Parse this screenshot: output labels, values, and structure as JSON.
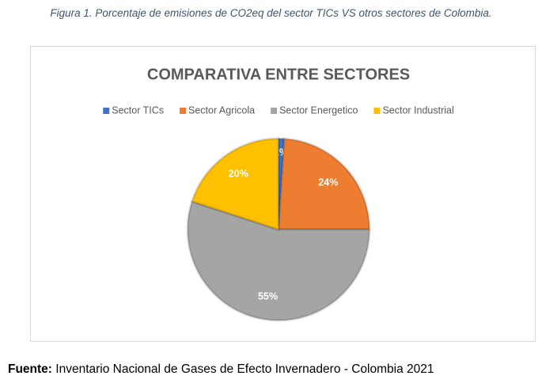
{
  "caption": "Figura 1. Porcentaje de emisiones de CO2eq del sector TICs VS otros sectores de Colombia.",
  "chart_data": {
    "type": "pie",
    "title": "COMPARATIVA ENTRE SECTORES",
    "categories": [
      "Sector TICs",
      "Sector Agricola",
      "Sector Energetico",
      "Sector Industrial"
    ],
    "values": [
      1,
      24,
      55,
      20
    ],
    "value_labels": [
      "1%",
      "24%",
      "55%",
      "20%"
    ],
    "colors": [
      "#4472c4",
      "#ed7d31",
      "#a5a5a5",
      "#ffc000"
    ],
    "legend": "top"
  },
  "source": {
    "label": "Fuente:",
    "text": "Inventario Nacional de Gases de Efecto Invernadero - Colombia 2021"
  }
}
